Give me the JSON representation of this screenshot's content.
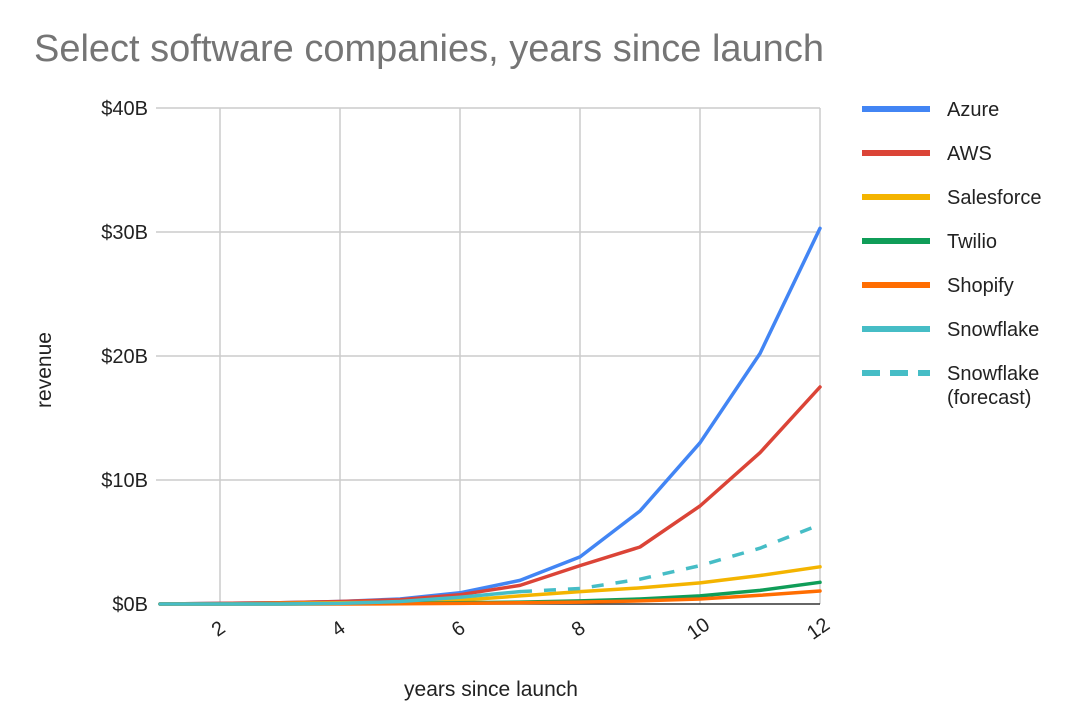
{
  "chart_data": {
    "type": "line",
    "title": "Select software companies, years since launch",
    "xlabel": "years since launch",
    "ylabel": "revenue",
    "x": [
      1,
      2,
      3,
      4,
      5,
      6,
      7,
      8,
      9,
      10,
      11,
      12
    ],
    "xlim": [
      1,
      12
    ],
    "xticks": [
      2,
      4,
      6,
      8,
      10,
      12
    ],
    "xtick_labels": [
      "2",
      "4",
      "6",
      "8",
      "10",
      "12"
    ],
    "ylim": [
      0,
      40
    ],
    "yticks": [
      0,
      10,
      20,
      30,
      40
    ],
    "ytick_labels": [
      "$0B",
      "$10B",
      "$20B",
      "$30B",
      "$40B"
    ],
    "y_unit": "billion USD",
    "grid": true,
    "legend_position": "right",
    "series": [
      {
        "name": "Azure",
        "color": "#4285F4",
        "dashed": false,
        "values": [
          0.0,
          0.05,
          0.1,
          0.2,
          0.4,
          0.9,
          1.9,
          3.8,
          7.5,
          13.0,
          20.2,
          30.3
        ]
      },
      {
        "name": "AWS",
        "color": "#DB4437",
        "dashed": false,
        "values": [
          0.0,
          0.05,
          0.1,
          0.2,
          0.35,
          0.75,
          1.5,
          3.1,
          4.6,
          7.9,
          12.2,
          17.5
        ]
      },
      {
        "name": "Salesforce",
        "color": "#F4B400",
        "dashed": false,
        "values": [
          0.0,
          0.0,
          0.05,
          0.1,
          0.15,
          0.3,
          0.65,
          1.0,
          1.3,
          1.7,
          2.3,
          3.0
        ]
      },
      {
        "name": "Twilio",
        "color": "#0F9D58",
        "dashed": false,
        "values": [
          0.0,
          0.0,
          0.0,
          0.02,
          0.05,
          0.1,
          0.15,
          0.25,
          0.4,
          0.65,
          1.1,
          1.75
        ]
      },
      {
        "name": "Shopify",
        "color": "#FF6D01",
        "dashed": false,
        "values": [
          0.0,
          0.0,
          0.0,
          0.0,
          0.02,
          0.05,
          0.1,
          0.15,
          0.25,
          0.4,
          0.7,
          1.05
        ]
      },
      {
        "name": "Snowflake",
        "color": "#46BDC6",
        "dashed": false,
        "values": [
          0.0,
          0.0,
          0.0,
          0.05,
          0.2,
          0.55,
          1.0,
          null,
          null,
          null,
          null,
          null
        ]
      },
      {
        "name": "Snowflake (forecast)",
        "color": "#46BDC6",
        "dashed": true,
        "values": [
          null,
          null,
          null,
          null,
          null,
          null,
          1.0,
          1.25,
          2.0,
          3.1,
          4.5,
          6.4
        ]
      }
    ]
  }
}
